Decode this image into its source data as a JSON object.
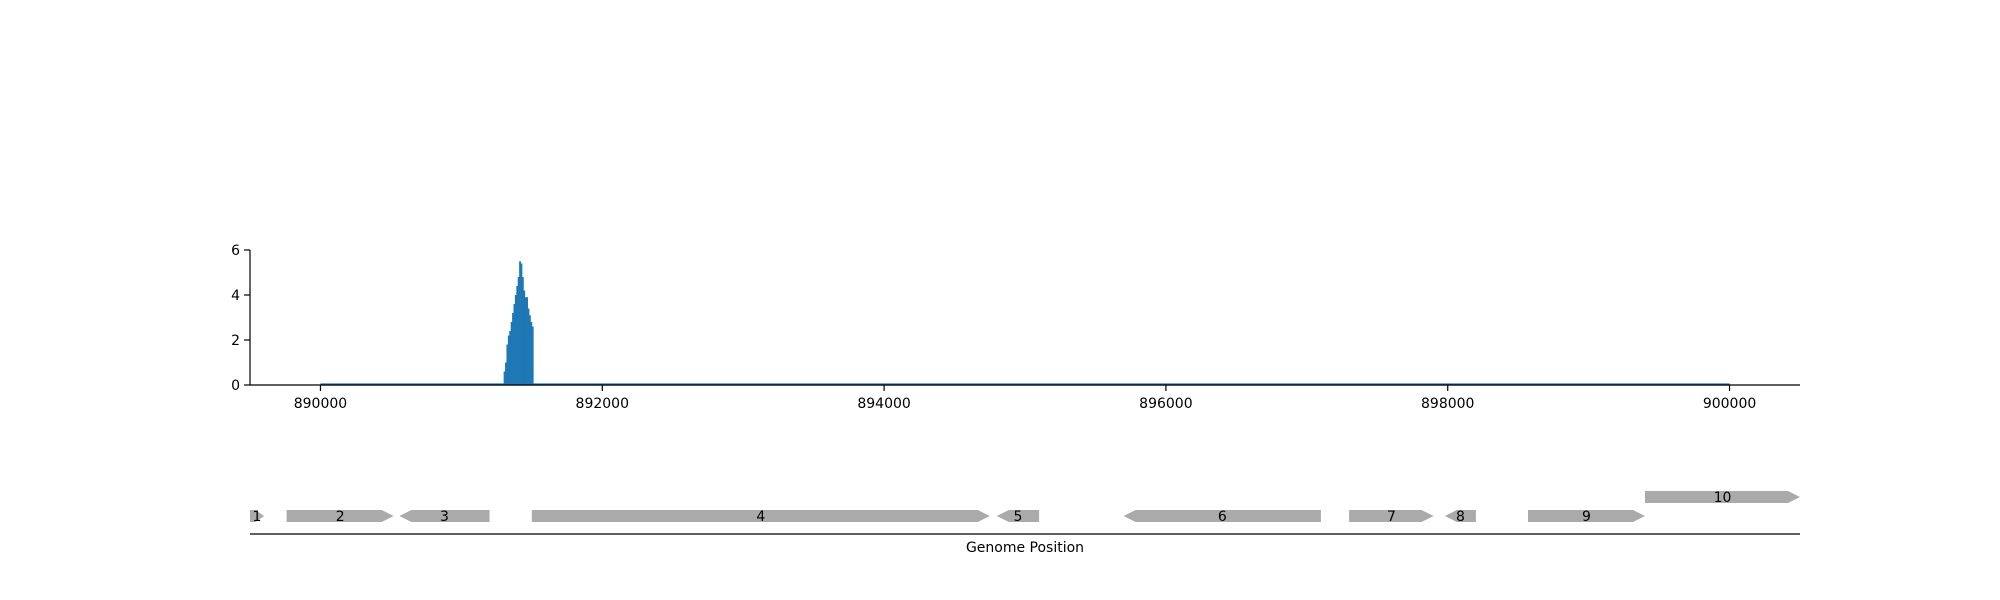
{
  "chart_data": [
    {
      "type": "bar",
      "title": "",
      "xlabel": "",
      "ylabel": "",
      "xlim": [
        889500,
        900500
      ],
      "ylim": [
        0,
        6
      ],
      "grid": false,
      "x_ticks": [
        890000,
        892000,
        894000,
        896000,
        898000,
        900000
      ],
      "x_tick_labels": [
        "890000",
        "892000",
        "894000",
        "896000",
        "898000",
        "900000"
      ],
      "y_ticks": [
        0,
        2,
        4,
        6
      ],
      "y_tick_labels": [
        "0",
        "2",
        "4",
        "6"
      ],
      "baseline": [
        890000,
        900000
      ],
      "bar_color": "#1f77b4",
      "bar_width": 10,
      "x": [
        891305,
        891315,
        891325,
        891335,
        891345,
        891355,
        891365,
        891375,
        891385,
        891395,
        891405,
        891415,
        891425,
        891435,
        891445,
        891455,
        891465,
        891475,
        891485,
        891495,
        891505
      ],
      "values": [
        0.6,
        1.0,
        1.8,
        2.2,
        2.4,
        2.8,
        3.2,
        3.6,
        4.0,
        4.4,
        4.8,
        5.5,
        5.4,
        4.8,
        4.2,
        3.9,
        3.9,
        3.4,
        3.1,
        2.8,
        2.6
      ]
    },
    {
      "type": "gene-track",
      "xlabel": "Genome Position",
      "xlim": [
        889500,
        900500
      ],
      "feature_color": "#aaaaaa",
      "genes": [
        {
          "label": "1",
          "start": 889500,
          "end": 889600,
          "strand": "+",
          "row": 0
        },
        {
          "label": "2",
          "start": 889760,
          "end": 890520,
          "strand": "+",
          "row": 0
        },
        {
          "label": "3",
          "start": 890560,
          "end": 891200,
          "strand": "-",
          "row": 0
        },
        {
          "label": "4",
          "start": 891500,
          "end": 894750,
          "strand": "+",
          "row": 0
        },
        {
          "label": "5",
          "start": 894800,
          "end": 895100,
          "strand": "-",
          "row": 0
        },
        {
          "label": "6",
          "start": 895700,
          "end": 897100,
          "strand": "-",
          "row": 0
        },
        {
          "label": "7",
          "start": 897300,
          "end": 897900,
          "strand": "+",
          "row": 0
        },
        {
          "label": "8",
          "start": 897980,
          "end": 898200,
          "strand": "-",
          "row": 0
        },
        {
          "label": "9",
          "start": 898570,
          "end": 899400,
          "strand": "+",
          "row": 0
        },
        {
          "label": "10",
          "start": 899400,
          "end": 900500,
          "strand": "+",
          "row": 1
        }
      ]
    }
  ]
}
